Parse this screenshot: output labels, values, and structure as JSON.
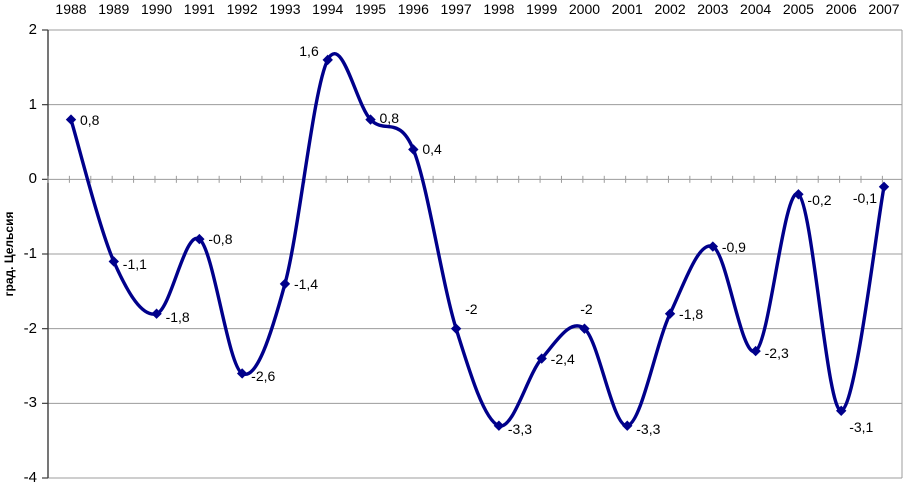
{
  "chart_data": {
    "type": "line",
    "smooth": true,
    "marker": "diamond",
    "title": "",
    "xlabel": "",
    "ylabel": "град. Цельсия",
    "x_axis_labels_position": "top",
    "grid": true,
    "legend": "none",
    "ylim": [
      -4,
      2
    ],
    "ytick_labels": [
      "2",
      "1",
      "0",
      "-1",
      "-2",
      "-3",
      "-4"
    ],
    "ytick_values": [
      2,
      1,
      0,
      -1,
      -2,
      -3,
      -4
    ],
    "categories": [
      "1988",
      "1989",
      "1990",
      "1991",
      "1992",
      "1993",
      "1994",
      "1995",
      "1996",
      "1997",
      "1998",
      "1999",
      "2000",
      "2001",
      "2002",
      "2003",
      "2004",
      "2005",
      "2006",
      "2007"
    ],
    "values": [
      0.8,
      -1.1,
      -1.8,
      -0.8,
      -2.6,
      -1.4,
      1.6,
      0.8,
      0.4,
      -2,
      -3.3,
      -2.4,
      -2,
      -3.3,
      -1.8,
      -0.9,
      -2.3,
      -0.2,
      -3.1,
      -0.1
    ],
    "point_labels": [
      "0,8",
      "-1,1",
      "-1,8",
      "-0,8",
      "-2,6",
      "-1,4",
      "1,6",
      "0,8",
      "0,4",
      "-2",
      "-3,3",
      "-2,4",
      "-2",
      "-3,3",
      "-1,8",
      "-0,9",
      "-2,3",
      "-0,2",
      "-3,1",
      "-0,1"
    ],
    "label_positions": [
      {
        "side": "right",
        "dy": 0
      },
      {
        "side": "right",
        "dy": 3
      },
      {
        "side": "right",
        "dy": 3
      },
      {
        "side": "right",
        "dy": 0
      },
      {
        "side": "right",
        "dy": 3
      },
      {
        "side": "right",
        "dy": 0
      },
      {
        "side": "left",
        "dy": -9
      },
      {
        "side": "right",
        "dy": -2
      },
      {
        "side": "right",
        "dy": 0
      },
      {
        "side": "above-right",
        "dy": -20
      },
      {
        "side": "right",
        "dy": 3
      },
      {
        "side": "right",
        "dy": 0
      },
      {
        "side": "above",
        "dy": -20
      },
      {
        "side": "right",
        "dy": 3
      },
      {
        "side": "right",
        "dy": 0
      },
      {
        "side": "right",
        "dy": 0
      },
      {
        "side": "right",
        "dy": 2
      },
      {
        "side": "right",
        "dy": 6
      },
      {
        "side": "below-right",
        "dy": 16
      },
      {
        "side": "left-below",
        "dy": 11
      }
    ],
    "colors": {
      "line": "#00008b",
      "marker": "#00008b",
      "gridline": "#9c9c9c",
      "axis": "#3d3d3d",
      "text": "#000000",
      "background": "#ffffff"
    }
  }
}
